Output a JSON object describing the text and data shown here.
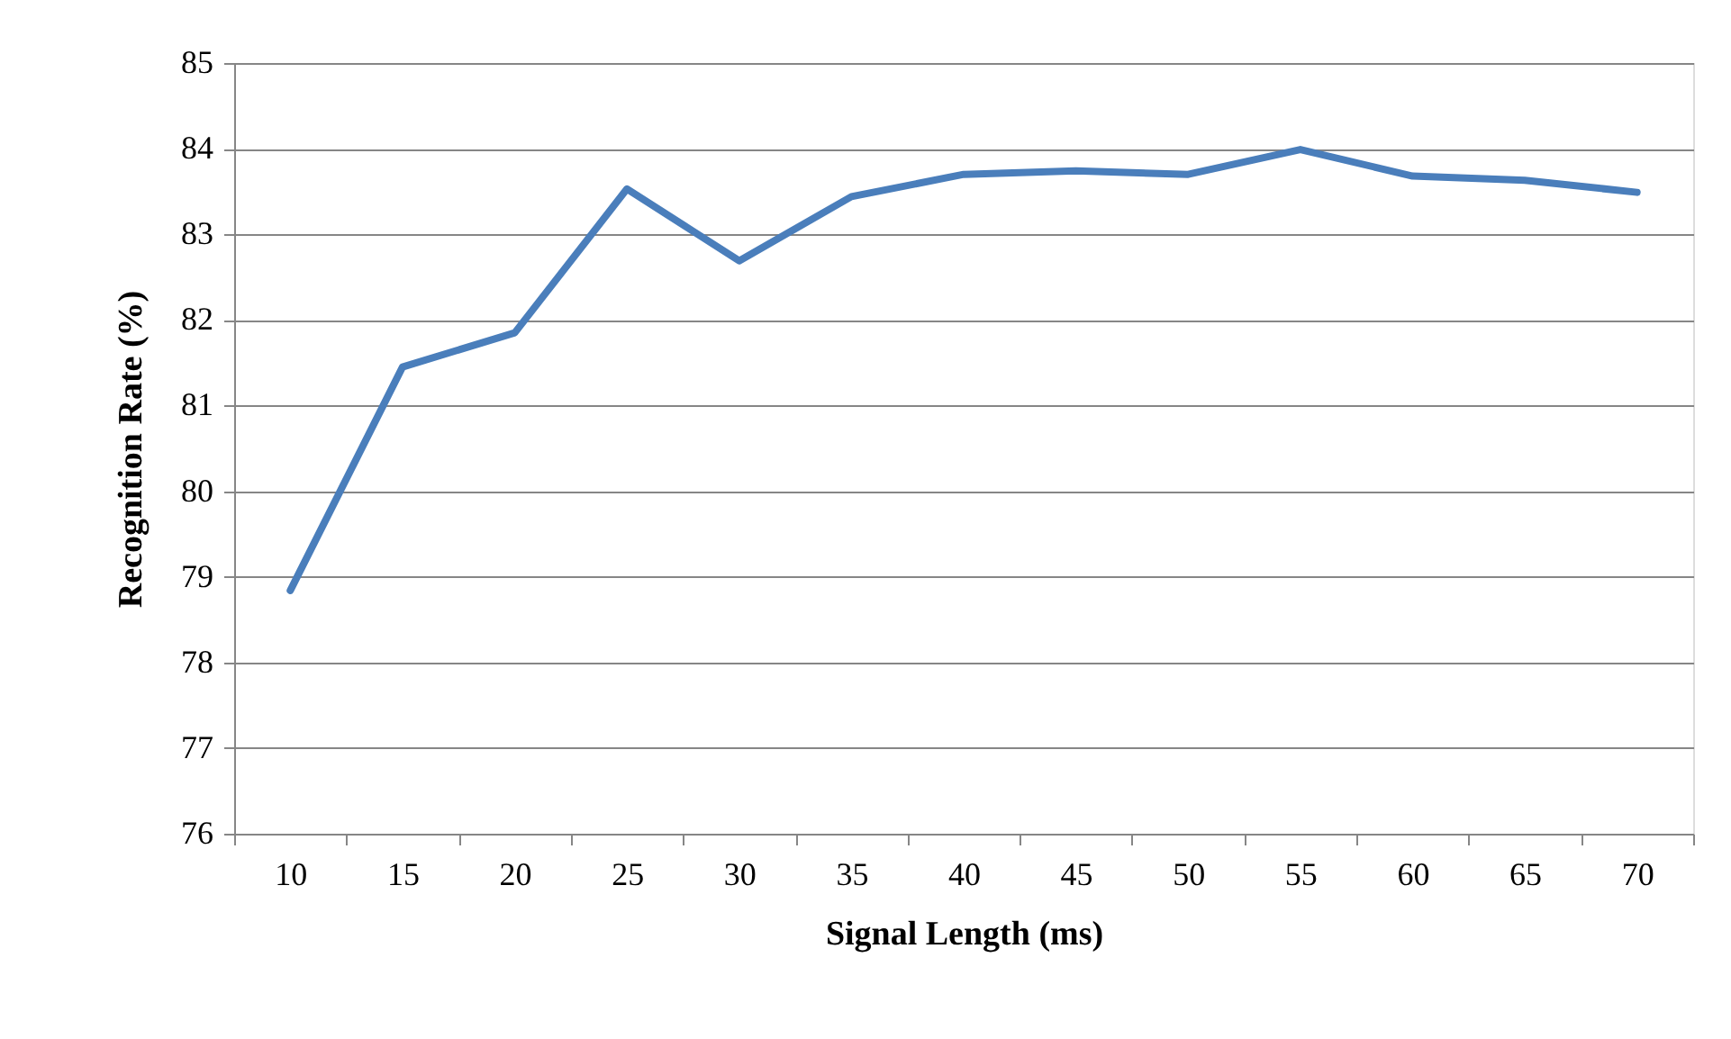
{
  "chart_data": {
    "type": "line",
    "xlabel": "Signal Length (ms)",
    "ylabel": "Recognition Rate (%)",
    "categories": [
      "10",
      "15",
      "20",
      "25",
      "30",
      "35",
      "40",
      "45",
      "50",
      "55",
      "60",
      "65",
      "70"
    ],
    "series": [
      {
        "color": "#4a7ebb",
        "values": [
          78.84,
          81.45,
          81.85,
          83.53,
          82.69,
          83.44,
          83.7,
          83.74,
          83.7,
          83.99,
          83.68,
          83.63,
          83.49
        ]
      }
    ],
    "ylim": [
      76,
      85
    ],
    "yticks": [
      76,
      77,
      78,
      79,
      80,
      81,
      82,
      83,
      84,
      85
    ],
    "grid": "y",
    "marker": "none",
    "line_style": "solid"
  }
}
